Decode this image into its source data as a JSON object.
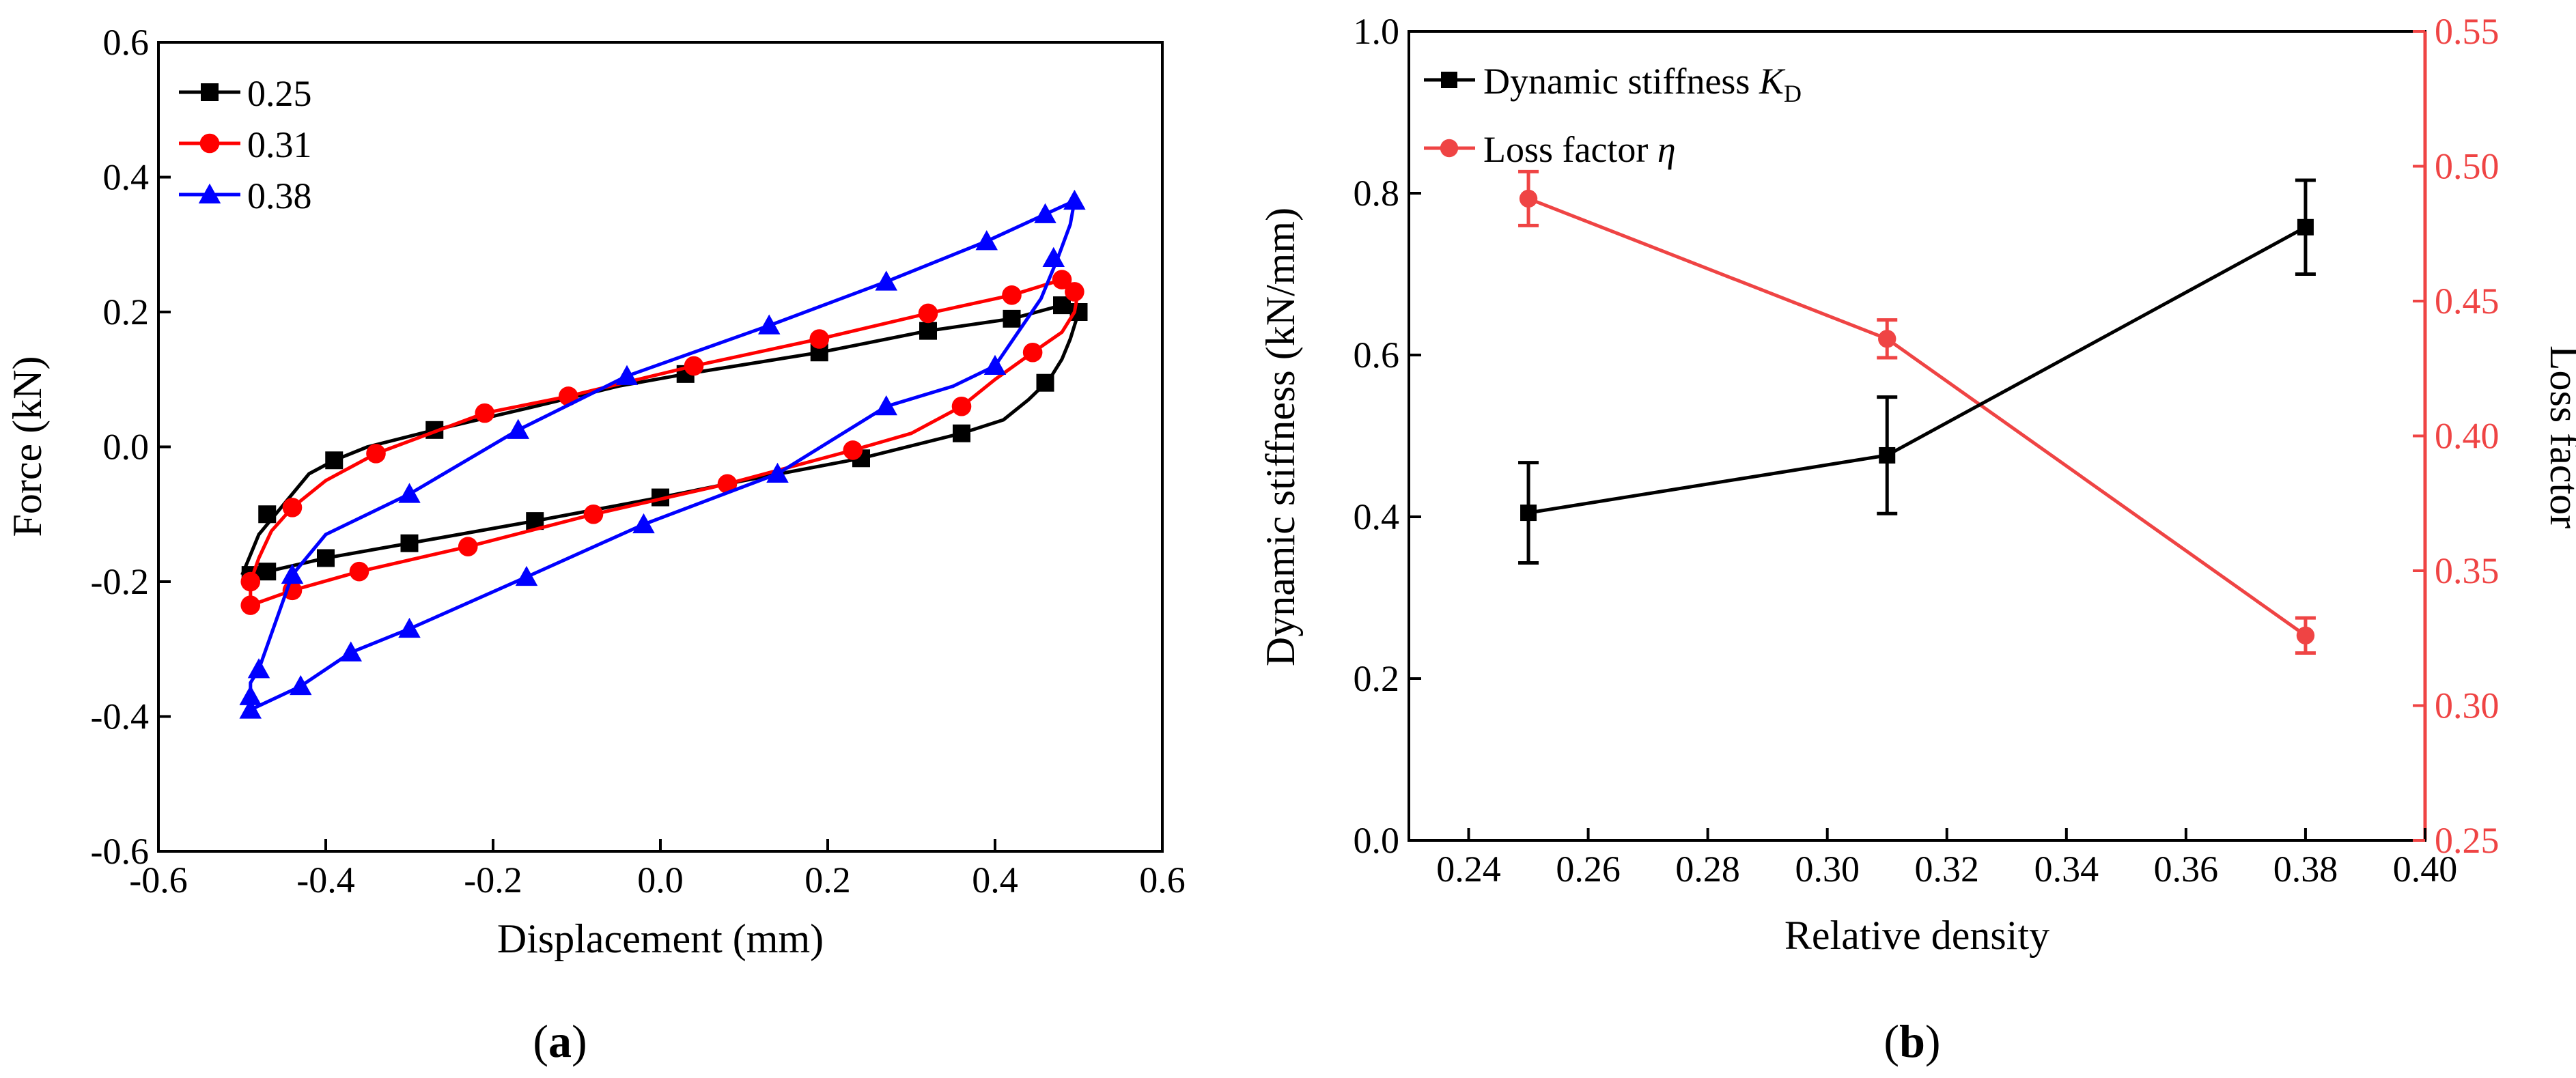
{
  "chart_data": [
    {
      "type": "line",
      "panel_label": "(a)",
      "xlabel": "Displacement (mm)",
      "ylabel": "Force (kN)",
      "xlim": [
        -0.6,
        0.6
      ],
      "ylim": [
        -0.6,
        0.6
      ],
      "xticks": [
        -0.6,
        -0.4,
        -0.2,
        0.0,
        0.2,
        0.4,
        0.6
      ],
      "yticks": [
        -0.6,
        -0.4,
        -0.2,
        0.0,
        0.2,
        0.4,
        0.6
      ],
      "xtick_labels": [
        "-0.6",
        "-0.4",
        "-0.2",
        "0.0",
        "0.2",
        "0.4",
        "0.6"
      ],
      "ytick_labels": [
        "-0.6",
        "-0.4",
        "-0.2",
        "0.0",
        "0.2",
        "0.4",
        "0.6"
      ],
      "legend_position": "top-left",
      "series": [
        {
          "name": "0.25",
          "color": "#000000",
          "marker": "square",
          "upper": [
            [
              -0.5,
              -0.19
            ],
            [
              -0.49,
              -0.16
            ],
            [
              -0.48,
              -0.13
            ],
            [
              -0.46,
              -0.1
            ],
            [
              -0.44,
              -0.07
            ],
            [
              -0.42,
              -0.04
            ],
            [
              -0.39,
              -0.02
            ],
            [
              -0.35,
              0.0
            ],
            [
              -0.27,
              0.025
            ],
            [
              -0.15,
              0.06
            ],
            [
              -0.05,
              0.09
            ],
            [
              0.03,
              0.108
            ],
            [
              0.19,
              0.14
            ],
            [
              0.32,
              0.172
            ],
            [
              0.42,
              0.19
            ],
            [
              0.48,
              0.21
            ],
            [
              0.5,
              0.2
            ]
          ],
          "lower": [
            [
              0.5,
              0.2
            ],
            [
              0.49,
              0.16
            ],
            [
              0.48,
              0.13
            ],
            [
              0.465,
              0.1
            ],
            [
              0.44,
              0.07
            ],
            [
              0.41,
              0.04
            ],
            [
              0.36,
              0.02
            ],
            [
              0.24,
              -0.017
            ],
            [
              0.1,
              -0.05
            ],
            [
              0.0,
              -0.075
            ],
            [
              -0.15,
              -0.11
            ],
            [
              -0.3,
              -0.143
            ],
            [
              -0.4,
              -0.165
            ],
            [
              -0.47,
              -0.185
            ],
            [
              -0.5,
              -0.19
            ]
          ],
          "markers": [
            [
              -0.49,
              -0.19
            ],
            [
              -0.47,
              -0.1
            ],
            [
              -0.39,
              -0.02
            ],
            [
              -0.27,
              0.025
            ],
            [
              0.03,
              0.108
            ],
            [
              0.19,
              0.14
            ],
            [
              0.32,
              0.172
            ],
            [
              0.42,
              0.19
            ],
            [
              0.48,
              0.21
            ],
            [
              0.5,
              0.2
            ],
            [
              0.46,
              0.095
            ],
            [
              0.36,
              0.02
            ],
            [
              0.24,
              -0.017
            ],
            [
              0.0,
              -0.075
            ],
            [
              -0.15,
              -0.11
            ],
            [
              -0.3,
              -0.143
            ],
            [
              -0.4,
              -0.165
            ],
            [
              -0.47,
              -0.185
            ]
          ]
        },
        {
          "name": "0.31",
          "color": "#ff0000",
          "marker": "circle",
          "upper": [
            [
              -0.49,
              -0.235
            ],
            [
              -0.49,
              -0.2
            ],
            [
              -0.48,
              -0.165
            ],
            [
              -0.465,
              -0.125
            ],
            [
              -0.44,
              -0.09
            ],
            [
              -0.4,
              -0.05
            ],
            [
              -0.34,
              -0.01
            ],
            [
              -0.21,
              0.05
            ],
            [
              -0.11,
              0.075
            ],
            [
              0.04,
              0.12
            ],
            [
              0.19,
              0.16
            ],
            [
              0.32,
              0.198
            ],
            [
              0.42,
              0.225
            ],
            [
              0.48,
              0.248
            ],
            [
              0.5,
              0.235
            ]
          ],
          "lower": [
            [
              0.5,
              0.235
            ],
            [
              0.495,
              0.2
            ],
            [
              0.48,
              0.17
            ],
            [
              0.445,
              0.14
            ],
            [
              0.4,
              0.1
            ],
            [
              0.36,
              0.06
            ],
            [
              0.3,
              0.02
            ],
            [
              0.23,
              -0.005
            ],
            [
              0.08,
              -0.055
            ],
            [
              -0.08,
              -0.1
            ],
            [
              -0.23,
              -0.148
            ],
            [
              -0.36,
              -0.185
            ],
            [
              -0.44,
              -0.213
            ],
            [
              -0.49,
              -0.235
            ]
          ],
          "markers": [
            [
              -0.49,
              -0.235
            ],
            [
              -0.49,
              -0.2
            ],
            [
              -0.44,
              -0.09
            ],
            [
              -0.34,
              -0.01
            ],
            [
              -0.21,
              0.05
            ],
            [
              -0.11,
              0.075
            ],
            [
              0.04,
              0.12
            ],
            [
              0.19,
              0.16
            ],
            [
              0.32,
              0.198
            ],
            [
              0.42,
              0.225
            ],
            [
              0.48,
              0.248
            ],
            [
              0.495,
              0.23
            ],
            [
              0.445,
              0.14
            ],
            [
              0.36,
              0.06
            ],
            [
              0.23,
              -0.005
            ],
            [
              0.08,
              -0.055
            ],
            [
              -0.08,
              -0.1
            ],
            [
              -0.23,
              -0.148
            ],
            [
              -0.36,
              -0.185
            ],
            [
              -0.44,
              -0.213
            ]
          ]
        },
        {
          "name": "0.38",
          "color": "#0000ff",
          "marker": "triangle",
          "upper": [
            [
              -0.49,
              -0.39
            ],
            [
              -0.49,
              -0.35
            ],
            [
              -0.48,
              -0.33
            ],
            [
              -0.44,
              -0.19
            ],
            [
              -0.4,
              -0.13
            ],
            [
              -0.3,
              -0.07
            ],
            [
              -0.17,
              0.025
            ],
            [
              -0.04,
              0.105
            ],
            [
              0.13,
              0.18
            ],
            [
              0.27,
              0.245
            ],
            [
              0.39,
              0.305
            ],
            [
              0.46,
              0.345
            ],
            [
              0.495,
              0.365
            ]
          ],
          "lower": [
            [
              0.495,
              0.365
            ],
            [
              0.49,
              0.33
            ],
            [
              0.475,
              0.28
            ],
            [
              0.455,
              0.22
            ],
            [
              0.4,
              0.12
            ],
            [
              0.35,
              0.09
            ],
            [
              0.27,
              0.06
            ],
            [
              0.14,
              -0.04
            ],
            [
              -0.02,
              -0.115
            ],
            [
              -0.16,
              -0.193
            ],
            [
              -0.3,
              -0.27
            ],
            [
              -0.37,
              -0.305
            ],
            [
              -0.43,
              -0.355
            ],
            [
              -0.49,
              -0.39
            ]
          ],
          "markers": [
            [
              -0.49,
              -0.39
            ],
            [
              -0.49,
              -0.37
            ],
            [
              -0.48,
              -0.33
            ],
            [
              -0.43,
              -0.355
            ],
            [
              -0.44,
              -0.19
            ],
            [
              -0.37,
              -0.305
            ],
            [
              -0.3,
              -0.07
            ],
            [
              -0.3,
              -0.27
            ],
            [
              -0.17,
              0.025
            ],
            [
              -0.16,
              -0.193
            ],
            [
              -0.04,
              0.105
            ],
            [
              -0.02,
              -0.115
            ],
            [
              0.13,
              0.18
            ],
            [
              0.14,
              -0.04
            ],
            [
              0.27,
              0.245
            ],
            [
              0.27,
              0.06
            ],
            [
              0.39,
              0.305
            ],
            [
              0.4,
              0.12
            ],
            [
              0.46,
              0.345
            ],
            [
              0.47,
              0.28
            ],
            [
              0.495,
              0.365
            ]
          ]
        }
      ]
    },
    {
      "type": "line",
      "panel_label": "(b)",
      "xlabel": "Relative density",
      "ylabel_left": "Dynamic stiffness (kN/mm)",
      "ylabel_right": "Loss factor",
      "xlim": [
        0.23,
        0.4
      ],
      "ylim_left": [
        0.0,
        1.0
      ],
      "ylim_right": [
        0.25,
        0.55
      ],
      "xticks": [
        0.24,
        0.26,
        0.28,
        0.3,
        0.32,
        0.34,
        0.36,
        0.38,
        0.4
      ],
      "xtick_labels": [
        "0.24",
        "0.26",
        "0.28",
        "0.30",
        "0.32",
        "0.34",
        "0.36",
        "0.38",
        "0.40"
      ],
      "yticks_left": [
        0.0,
        0.2,
        0.4,
        0.6,
        0.8,
        1.0
      ],
      "ytick_labels_left": [
        "0.0",
        "0.2",
        "0.4",
        "0.6",
        "0.8",
        "1.0"
      ],
      "yticks_right": [
        0.25,
        0.3,
        0.35,
        0.4,
        0.45,
        0.5,
        0.55
      ],
      "ytick_labels_right": [
        "0.25",
        "0.30",
        "0.35",
        "0.40",
        "0.45",
        "0.50",
        "0.55"
      ],
      "legend_position": "top-left",
      "series": [
        {
          "name": "Dynamic stiffness",
          "symbol": "K",
          "subscript": "D",
          "axis": "left",
          "color": "#000000",
          "marker": "square",
          "x": [
            0.25,
            0.31,
            0.38
          ],
          "y": [
            0.405,
            0.476,
            0.758
          ],
          "err": [
            0.062,
            0.072,
            0.058
          ]
        },
        {
          "name": "Loss factor",
          "symbol": "η",
          "axis": "right",
          "color": "#ef4444",
          "marker": "circle",
          "x": [
            0.25,
            0.31,
            0.38
          ],
          "y": [
            0.488,
            0.436,
            0.326
          ],
          "err": [
            0.01,
            0.007,
            0.0065
          ]
        }
      ]
    }
  ]
}
